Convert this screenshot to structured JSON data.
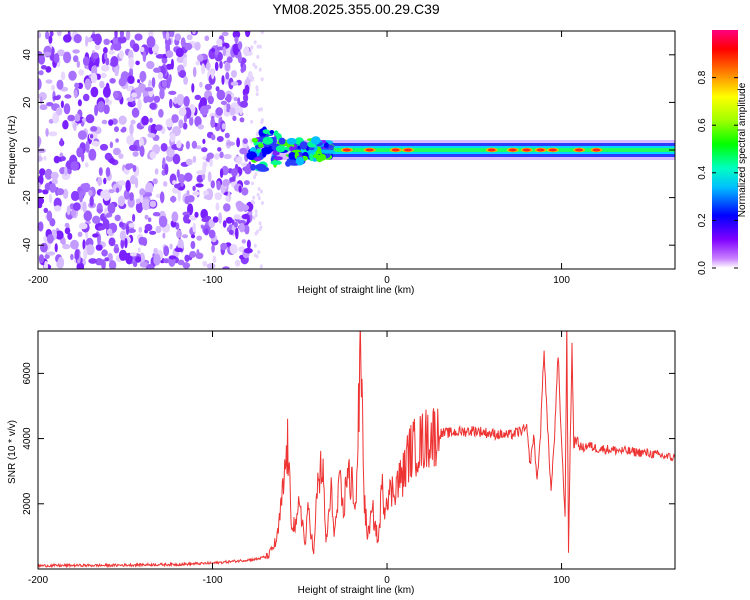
{
  "title": "YM08.2025.355.00.29.C39",
  "chart_data": [
    {
      "type": "heatmap",
      "xlabel": "Height of straight line (km)",
      "ylabel": "Frequency (Hz)",
      "xlim": [
        -200,
        165
      ],
      "ylim": [
        -50,
        50
      ],
      "xticks": [
        -200,
        -100,
        0,
        100
      ],
      "yticks": [
        -40,
        -20,
        0,
        20,
        40
      ],
      "colorbar": {
        "label": "Normalized spectral amplitude",
        "range": [
          0,
          1
        ],
        "ticks": [
          0.0,
          0.2,
          0.4,
          0.6,
          0.8
        ],
        "colormap": "rainbow (magenta-violet-blue-cyan-green-yellow-orange-red-pink)"
      },
      "noise_region_x": [
        -200,
        -78
      ],
      "signal_band_center_hz": 0,
      "grid": false
    },
    {
      "type": "line",
      "xlabel": "Height of straight line (km)",
      "ylabel": "SNR (10 * v/v)",
      "xlim": [
        -200,
        165
      ],
      "ylim": [
        0,
        7300
      ],
      "xticks": [
        -200,
        -100,
        0,
        100
      ],
      "yticks": [
        2000,
        4000,
        6000
      ],
      "color": "#ee3333",
      "grid": false,
      "series": [
        {
          "x": [
            -200,
            -180,
            -160,
            -140,
            -120,
            -100,
            -85,
            -75,
            -68,
            -63,
            -60,
            -57,
            -55,
            -52,
            -50,
            -47,
            -45,
            -42,
            -40,
            -37,
            -35,
            -32,
            -30,
            -27,
            -25,
            -22,
            -21,
            -20,
            -18,
            -15,
            -13,
            -11,
            -10,
            -8,
            -5,
            -3,
            -1,
            0,
            2,
            5,
            8,
            10,
            12,
            15,
            18,
            20,
            25,
            30,
            40,
            50,
            60,
            70,
            75,
            80,
            82,
            84,
            86,
            88,
            90,
            92,
            94,
            96,
            98,
            100,
            102,
            103,
            104,
            105,
            106,
            107,
            108,
            110,
            112,
            115,
            120,
            130,
            140,
            150,
            160,
            165
          ],
          "y": [
            100,
            110,
            110,
            130,
            140,
            180,
            250,
            300,
            400,
            900,
            2200,
            3800,
            1600,
            1200,
            2200,
            700,
            1900,
            400,
            2500,
            3200,
            800,
            2300,
            1100,
            2600,
            1700,
            3500,
            1900,
            2900,
            1800,
            6800,
            2100,
            900,
            1400,
            1700,
            800,
            2500,
            1900,
            2400,
            2300,
            2600,
            2800,
            3000,
            3500,
            3700,
            3800,
            3900,
            4100,
            4150,
            4200,
            4250,
            4150,
            4100,
            4200,
            4300,
            3200,
            4100,
            2700,
            4200,
            6800,
            4300,
            2400,
            4100,
            6500,
            3900,
            1600,
            7300,
            500,
            4000,
            6800,
            3800,
            4000,
            3800,
            3700,
            3800,
            3700,
            3650,
            3600,
            3550,
            3450,
            3400
          ]
        }
      ]
    }
  ]
}
